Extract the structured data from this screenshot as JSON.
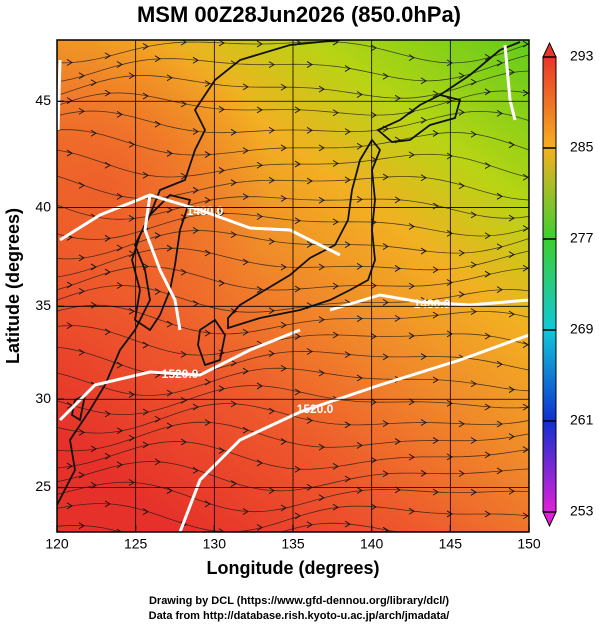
{
  "title": "MSM 00Z28Jun2026 (850.0hPa)",
  "x_axis": {
    "label": "Longitude (degrees)",
    "lim": [
      120,
      150
    ],
    "ticks": [
      120,
      125,
      130,
      135,
      140,
      145,
      150
    ]
  },
  "y_axis": {
    "label": "Latitude  (degrees)",
    "lim": [
      22.4,
      47.7
    ],
    "ticks": [
      25,
      30,
      35,
      40,
      45
    ],
    "projection": "mercator"
  },
  "colorbar": {
    "ticks": [
      293,
      285,
      277,
      269,
      261,
      253
    ],
    "colors": [
      "#e8352a",
      "#f5b020",
      "#3ccf30",
      "#10c8d8",
      "#1030d0",
      "#e020d8"
    ]
  },
  "contour_labels": [
    "1480.0",
    "1480.0",
    "1520.0",
    "1520.0"
  ],
  "credits": [
    "Drawing by DCL (https://www.gfd-dennou.org/library/dcl/)",
    "Data from http://database.rish.kyoto-u.ac.jp/arch/jmadata/"
  ]
}
